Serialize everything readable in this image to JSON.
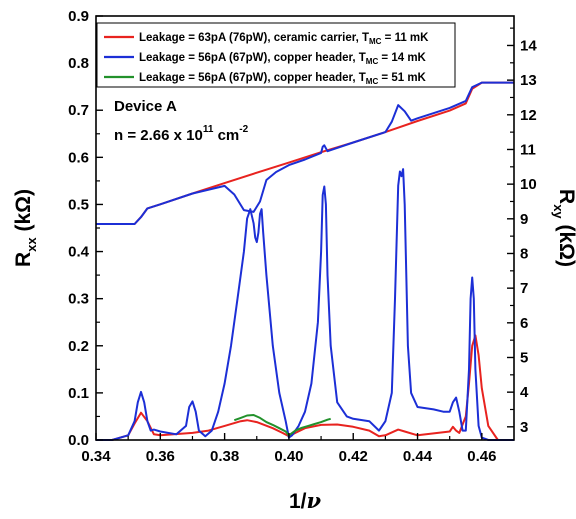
{
  "chart_data": {
    "type": "line",
    "xlabel": {
      "main": "1/",
      "greek": "ν"
    },
    "ylabel_left": {
      "main": "R",
      "sub": "xx",
      "unit": " (kΩ)"
    },
    "ylabel_right": {
      "main": "R",
      "sub": "xy",
      "unit": " (kΩ)"
    },
    "xlim": [
      0.34,
      0.47
    ],
    "ylim_left": [
      0.0,
      0.9
    ],
    "ylim_right": [
      2.62,
      14.85
    ],
    "x_ticks": [
      "0.34",
      "0.36",
      "0.38",
      "0.40",
      "0.42",
      "0.44",
      "0.46"
    ],
    "x_tick_values": [
      0.34,
      0.36,
      0.38,
      0.4,
      0.42,
      0.44,
      0.46
    ],
    "y_ticks_left": [
      "0.0",
      "0.1",
      "0.2",
      "0.3",
      "0.4",
      "0.5",
      "0.6",
      "0.7",
      "0.8",
      "0.9"
    ],
    "y_tick_values_left": [
      0.0,
      0.1,
      0.2,
      0.3,
      0.4,
      0.5,
      0.6,
      0.7,
      0.8,
      0.9
    ],
    "y_ticks_right": [
      "3",
      "4",
      "5",
      "6",
      "7",
      "8",
      "9",
      "10",
      "11",
      "12",
      "13",
      "14"
    ],
    "y_tick_values_right": [
      3,
      4,
      5,
      6,
      7,
      8,
      9,
      10,
      11,
      12,
      13,
      14
    ],
    "annotations": {
      "device": "Device A",
      "density_main": "n = 2.66 x 10",
      "density_exp1": "11",
      "density_unit": " cm",
      "density_exp2": "-2"
    },
    "legend": [
      {
        "main": "Leakage = 63pA (76pW), ceramic carrier, T",
        "sub": "MC",
        "tail": " = 11 mK",
        "color": "#e8231f"
      },
      {
        "main": "Leakage = 56pA (67pW), copper header, T",
        "sub": "MC",
        "tail": " = 14 mK",
        "color": "#1c2fd6"
      },
      {
        "main": "Leakage = 56pA (67pW), copper header, T",
        "sub": "MC",
        "tail": " = 51 mK",
        "color": "#22912b"
      }
    ],
    "series": [
      {
        "axis": "right",
        "color": "#e8231f",
        "x": [
          0.34,
          0.352,
          0.354,
          0.356,
          0.36,
          0.37,
          0.38,
          0.39,
          0.4,
          0.41,
          0.42,
          0.43,
          0.44,
          0.45,
          0.455,
          0.457,
          0.46,
          0.47
        ],
        "y": [
          8.85,
          8.85,
          9.05,
          9.3,
          9.42,
          9.73,
          10.03,
          10.33,
          10.62,
          10.92,
          11.2,
          11.5,
          11.82,
          12.12,
          12.33,
          12.75,
          12.93,
          12.93
        ]
      },
      {
        "axis": "right",
        "color": "#1c2fd6",
        "x": [
          0.34,
          0.352,
          0.354,
          0.356,
          0.36,
          0.37,
          0.38,
          0.383,
          0.386,
          0.389,
          0.391,
          0.393,
          0.396,
          0.4,
          0.405,
          0.41,
          0.4105,
          0.411,
          0.412,
          0.42,
          0.43,
          0.432,
          0.434,
          0.436,
          0.438,
          0.44,
          0.45,
          0.455,
          0.457,
          0.46,
          0.47
        ],
        "y": [
          8.85,
          8.85,
          9.05,
          9.3,
          9.42,
          9.73,
          9.95,
          9.7,
          9.25,
          9.2,
          9.5,
          10.12,
          10.35,
          10.55,
          10.71,
          10.9,
          11.08,
          11.12,
          10.95,
          11.2,
          11.5,
          11.8,
          12.28,
          12.1,
          11.83,
          11.9,
          12.2,
          12.4,
          12.8,
          12.93,
          12.93
        ]
      },
      {
        "axis": "left",
        "color": "#e8231f",
        "x": [
          0.34,
          0.345,
          0.35,
          0.352,
          0.354,
          0.356,
          0.358,
          0.36,
          0.37,
          0.375,
          0.38,
          0.385,
          0.387,
          0.39,
          0.395,
          0.398,
          0.4,
          0.402,
          0.405,
          0.41,
          0.415,
          0.42,
          0.425,
          0.428,
          0.43,
          0.434,
          0.436,
          0.44,
          0.45,
          0.451,
          0.452,
          0.453,
          0.455,
          0.456,
          0.457,
          0.458,
          0.459,
          0.46,
          0.462,
          0.465,
          0.47
        ],
        "y": [
          0.0,
          0.0,
          0.01,
          0.035,
          0.058,
          0.04,
          0.012,
          0.01,
          0.015,
          0.02,
          0.03,
          0.04,
          0.042,
          0.038,
          0.025,
          0.015,
          0.008,
          0.015,
          0.025,
          0.032,
          0.033,
          0.028,
          0.02,
          0.008,
          0.01,
          0.022,
          0.018,
          0.01,
          0.018,
          0.028,
          0.02,
          0.015,
          0.05,
          0.12,
          0.2,
          0.222,
          0.18,
          0.11,
          0.03,
          0.0,
          0.0
        ]
      },
      {
        "axis": "left",
        "color": "#1c2fd6",
        "x": [
          0.34,
          0.345,
          0.35,
          0.352,
          0.353,
          0.354,
          0.355,
          0.356,
          0.357,
          0.358,
          0.36,
          0.365,
          0.368,
          0.369,
          0.37,
          0.371,
          0.372,
          0.374,
          0.376,
          0.378,
          0.38,
          0.382,
          0.384,
          0.386,
          0.387,
          0.388,
          0.389,
          0.3895,
          0.39,
          0.3905,
          0.391,
          0.3915,
          0.392,
          0.393,
          0.395,
          0.397,
          0.399,
          0.4,
          0.401,
          0.403,
          0.405,
          0.407,
          0.409,
          0.41,
          0.4105,
          0.411,
          0.4115,
          0.412,
          0.413,
          0.415,
          0.418,
          0.42,
          0.425,
          0.428,
          0.43,
          0.432,
          0.433,
          0.434,
          0.4345,
          0.435,
          0.4355,
          0.436,
          0.437,
          0.438,
          0.44,
          0.445,
          0.448,
          0.45,
          0.451,
          0.452,
          0.453,
          0.454,
          0.455,
          0.456,
          0.4565,
          0.457,
          0.4575,
          0.458,
          0.459,
          0.46,
          0.462,
          0.465,
          0.47
        ],
        "y": [
          0.0,
          0.0,
          0.01,
          0.04,
          0.08,
          0.102,
          0.08,
          0.04,
          0.02,
          0.022,
          0.018,
          0.012,
          0.03,
          0.07,
          0.082,
          0.06,
          0.02,
          0.008,
          0.02,
          0.06,
          0.12,
          0.2,
          0.3,
          0.4,
          0.47,
          0.49,
          0.46,
          0.43,
          0.42,
          0.44,
          0.48,
          0.49,
          0.44,
          0.35,
          0.2,
          0.1,
          0.04,
          0.005,
          0.01,
          0.03,
          0.06,
          0.12,
          0.25,
          0.4,
          0.52,
          0.538,
          0.5,
          0.35,
          0.2,
          0.08,
          0.05,
          0.045,
          0.04,
          0.02,
          0.04,
          0.1,
          0.3,
          0.54,
          0.57,
          0.56,
          0.575,
          0.5,
          0.2,
          0.1,
          0.07,
          0.065,
          0.06,
          0.06,
          0.08,
          0.09,
          0.06,
          0.02,
          0.02,
          0.15,
          0.3,
          0.345,
          0.3,
          0.15,
          0.03,
          0.005,
          0.0,
          0.0,
          0.0
        ]
      },
      {
        "axis": "left",
        "color": "#22912b",
        "x": [
          0.383,
          0.385,
          0.387,
          0.389,
          0.391,
          0.393,
          0.395,
          0.397,
          0.399,
          0.4,
          0.402,
          0.404,
          0.406,
          0.408,
          0.41,
          0.412,
          0.413
        ],
        "y": [
          0.042,
          0.047,
          0.052,
          0.053,
          0.047,
          0.038,
          0.032,
          0.025,
          0.018,
          0.01,
          0.02,
          0.026,
          0.03,
          0.034,
          0.038,
          0.043,
          0.045
        ]
      }
    ]
  }
}
